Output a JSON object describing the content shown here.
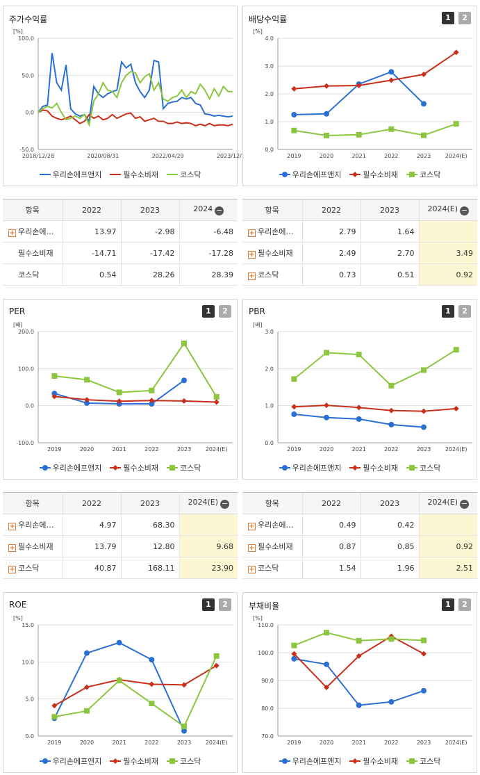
{
  "colors": {
    "blue": "#2a6fd4",
    "red": "#c9301c",
    "green": "#8cc63f"
  },
  "panels": {
    "p1": {
      "title": "주가수익률",
      "btn1": "",
      "btn2": ""
    },
    "p2": {
      "title": "배당수익률",
      "btn1": "1",
      "btn2": "2"
    },
    "p3": {
      "title": "PER",
      "btn1": "1",
      "btn2": "2"
    },
    "p4": {
      "title": "PBR",
      "btn1": "1",
      "btn2": "2"
    },
    "p5": {
      "title": "ROE",
      "btn1": "1",
      "btn2": "2"
    },
    "p6": {
      "title": "부채비율",
      "btn1": "1",
      "btn2": "2"
    }
  },
  "legend": [
    "우리손에프앤지",
    "필수소비재",
    "코스닥"
  ],
  "chart_data": [
    {
      "id": "p1",
      "type": "line",
      "title": "주가수익률",
      "unit": "[%]",
      "ylim": [
        -50,
        100
      ],
      "yticks": [
        "100.0",
        "50.0",
        "0.0",
        "-50.0"
      ],
      "xticks": [
        "2018/12/28",
        "2020/08/31",
        "2022/04/29",
        "2023/12/28"
      ],
      "series": [
        {
          "name": "우리손에프앤지",
          "color": "blue",
          "values": [
            0,
            8,
            10,
            80,
            40,
            30,
            64,
            5,
            -2,
            -5,
            -3,
            -12,
            35,
            25,
            20,
            25,
            28,
            30,
            68,
            60,
            65,
            40,
            28,
            20,
            30,
            70,
            68,
            5,
            12,
            14,
            15,
            20,
            18,
            20,
            12,
            10,
            -2,
            -3,
            -5,
            -4,
            -5,
            -6,
            -5
          ]
        },
        {
          "name": "필수소비재",
          "color": "red",
          "values": [
            0,
            3,
            2,
            -5,
            -8,
            -10,
            -8,
            -5,
            -10,
            -15,
            -12,
            -3,
            -8,
            -5,
            -10,
            -8,
            -3,
            -8,
            -5,
            -2,
            -1,
            -8,
            -6,
            -12,
            -10,
            -8,
            -12,
            -12,
            -15,
            -15,
            -13,
            -15,
            -14,
            -15,
            -18,
            -16,
            -18,
            -15,
            -18,
            -17,
            -17,
            -18,
            -16
          ]
        },
        {
          "name": "코스닥",
          "color": "green",
          "values": [
            0,
            5,
            8,
            6,
            12,
            0,
            -10,
            -8,
            -5,
            -8,
            -3,
            -17,
            15,
            25,
            40,
            30,
            28,
            20,
            40,
            50,
            55,
            53,
            40,
            48,
            52,
            30,
            40,
            18,
            15,
            20,
            22,
            30,
            20,
            28,
            25,
            38,
            30,
            18,
            32,
            22,
            35,
            28,
            28
          ]
        }
      ]
    },
    {
      "id": "p2",
      "type": "line",
      "title": "배당수익률",
      "unit": "[%]",
      "ylim": [
        0,
        4
      ],
      "yticks": [
        "4.0",
        "3.0",
        "2.0",
        "1.0",
        "0.0"
      ],
      "xticks": [
        "2019",
        "2020",
        "2021",
        "2022",
        "2023",
        "2024(E)"
      ],
      "series": [
        {
          "name": "우리손에프앤지",
          "color": "blue",
          "values": [
            1.25,
            1.28,
            2.35,
            2.79,
            1.64,
            null
          ]
        },
        {
          "name": "필수소비재",
          "color": "red",
          "values": [
            2.18,
            2.28,
            2.3,
            2.49,
            2.7,
            3.49
          ]
        },
        {
          "name": "코스닥",
          "color": "green",
          "values": [
            0.68,
            0.5,
            0.53,
            0.73,
            0.51,
            0.92
          ]
        }
      ]
    },
    {
      "id": "p3",
      "type": "line",
      "title": "PER",
      "unit": "[배]",
      "ylim": [
        -100,
        200
      ],
      "yticks": [
        "200.0",
        "100.0",
        "0.0",
        "-100.0"
      ],
      "xticks": [
        "2019",
        "2020",
        "2021",
        "2022",
        "2023",
        "2024(E)"
      ],
      "series": [
        {
          "name": "우리손에프앤지",
          "color": "blue",
          "values": [
            33,
            7,
            5,
            4.97,
            68.3,
            null
          ]
        },
        {
          "name": "필수소비재",
          "color": "red",
          "values": [
            25,
            16,
            12,
            13.79,
            12.8,
            9.68
          ]
        },
        {
          "name": "코스닥",
          "color": "green",
          "values": [
            80,
            70,
            36,
            40.87,
            168.11,
            23.9
          ]
        }
      ]
    },
    {
      "id": "p4",
      "type": "line",
      "title": "PBR",
      "unit": "[배]",
      "ylim": [
        0,
        3
      ],
      "yticks": [
        "3.0",
        "2.0",
        "1.0",
        "0.0"
      ],
      "xticks": [
        "2019",
        "2020",
        "2021",
        "2022",
        "2023",
        "2024(E)"
      ],
      "series": [
        {
          "name": "우리손에프앤지",
          "color": "blue",
          "values": [
            0.77,
            0.68,
            0.64,
            0.49,
            0.42,
            null
          ]
        },
        {
          "name": "필수소비재",
          "color": "red",
          "values": [
            0.97,
            1.01,
            0.95,
            0.87,
            0.85,
            0.92
          ]
        },
        {
          "name": "코스닥",
          "color": "green",
          "values": [
            1.72,
            2.43,
            2.38,
            1.54,
            1.96,
            2.51
          ]
        }
      ]
    },
    {
      "id": "p5",
      "type": "line",
      "title": "ROE",
      "unit": "[%]",
      "ylim": [
        0,
        15
      ],
      "yticks": [
        "15.0",
        "10.0",
        "5.0",
        "0.0"
      ],
      "xticks": [
        "2019",
        "2020",
        "2021",
        "2022",
        "2023",
        "2024(E)"
      ],
      "series": [
        {
          "name": "우리손에프앤지",
          "color": "blue",
          "values": [
            2.4,
            11.2,
            12.6,
            10.3,
            0.7,
            null
          ]
        },
        {
          "name": "필수소비재",
          "color": "red",
          "values": [
            4.1,
            6.6,
            7.6,
            7.0,
            6.9,
            9.5
          ]
        },
        {
          "name": "코스닥",
          "color": "green",
          "values": [
            2.6,
            3.4,
            7.5,
            4.4,
            1.3,
            10.8
          ]
        }
      ]
    },
    {
      "id": "p6",
      "type": "line",
      "title": "부채비율",
      "unit": "[%]",
      "ylim": [
        70,
        110
      ],
      "yticks": [
        "110.0",
        "100.0",
        "90.0",
        "80.0",
        "70.0"
      ],
      "xticks": [
        "2019",
        "2020",
        "2021",
        "2022",
        "2023",
        "2024(E)"
      ],
      "series": [
        {
          "name": "우리손에프앤지",
          "color": "blue",
          "values": [
            97.8,
            95.8,
            81.1,
            82.3,
            86.3,
            null
          ]
        },
        {
          "name": "필수소비재",
          "color": "red",
          "values": [
            99.6,
            87.5,
            98.8,
            105.9,
            99.6,
            null
          ]
        },
        {
          "name": "코스닥",
          "color": "green",
          "values": [
            102.6,
            107.2,
            104.3,
            104.9,
            104.4,
            null
          ]
        }
      ]
    }
  ],
  "tables": {
    "t1": {
      "head": [
        "항목",
        "2022",
        "2023",
        "2024"
      ],
      "rows": [
        {
          "label": "우리손에…",
          "plus": true,
          "v": [
            "13.97",
            "-2.98",
            "-6.48"
          ]
        },
        {
          "label": "필수소비재",
          "plus": false,
          "v": [
            "-14.71",
            "-17.42",
            "-17.28"
          ]
        },
        {
          "label": "코스닥",
          "plus": false,
          "v": [
            "0.54",
            "28.26",
            "28.39"
          ]
        }
      ]
    },
    "t2": {
      "head": [
        "항목",
        "2022",
        "2023",
        "2024(E)"
      ],
      "rows": [
        {
          "label": "우리손에…",
          "plus": true,
          "v": [
            "2.79",
            "1.64",
            ""
          ]
        },
        {
          "label": "필수소비재",
          "plus": true,
          "v": [
            "2.49",
            "2.70",
            "3.49"
          ]
        },
        {
          "label": "코스닥",
          "plus": true,
          "v": [
            "0.73",
            "0.51",
            "0.92"
          ]
        }
      ]
    },
    "t3": {
      "head": [
        "항목",
        "2022",
        "2023",
        "2024(E)"
      ],
      "rows": [
        {
          "label": "우리손에…",
          "plus": true,
          "v": [
            "4.97",
            "68.30",
            ""
          ]
        },
        {
          "label": "필수소비재",
          "plus": true,
          "v": [
            "13.79",
            "12.80",
            "9.68"
          ]
        },
        {
          "label": "코스닥",
          "plus": true,
          "v": [
            "40.87",
            "168.11",
            "23.90"
          ]
        }
      ]
    },
    "t4": {
      "head": [
        "항목",
        "2022",
        "2023",
        "2024(E)"
      ],
      "rows": [
        {
          "label": "우리손에…",
          "plus": true,
          "v": [
            "0.49",
            "0.42",
            ""
          ]
        },
        {
          "label": "필수소비재",
          "plus": true,
          "v": [
            "0.87",
            "0.85",
            "0.92"
          ]
        },
        {
          "label": "코스닥",
          "plus": true,
          "v": [
            "1.54",
            "1.96",
            "2.51"
          ]
        }
      ]
    }
  }
}
